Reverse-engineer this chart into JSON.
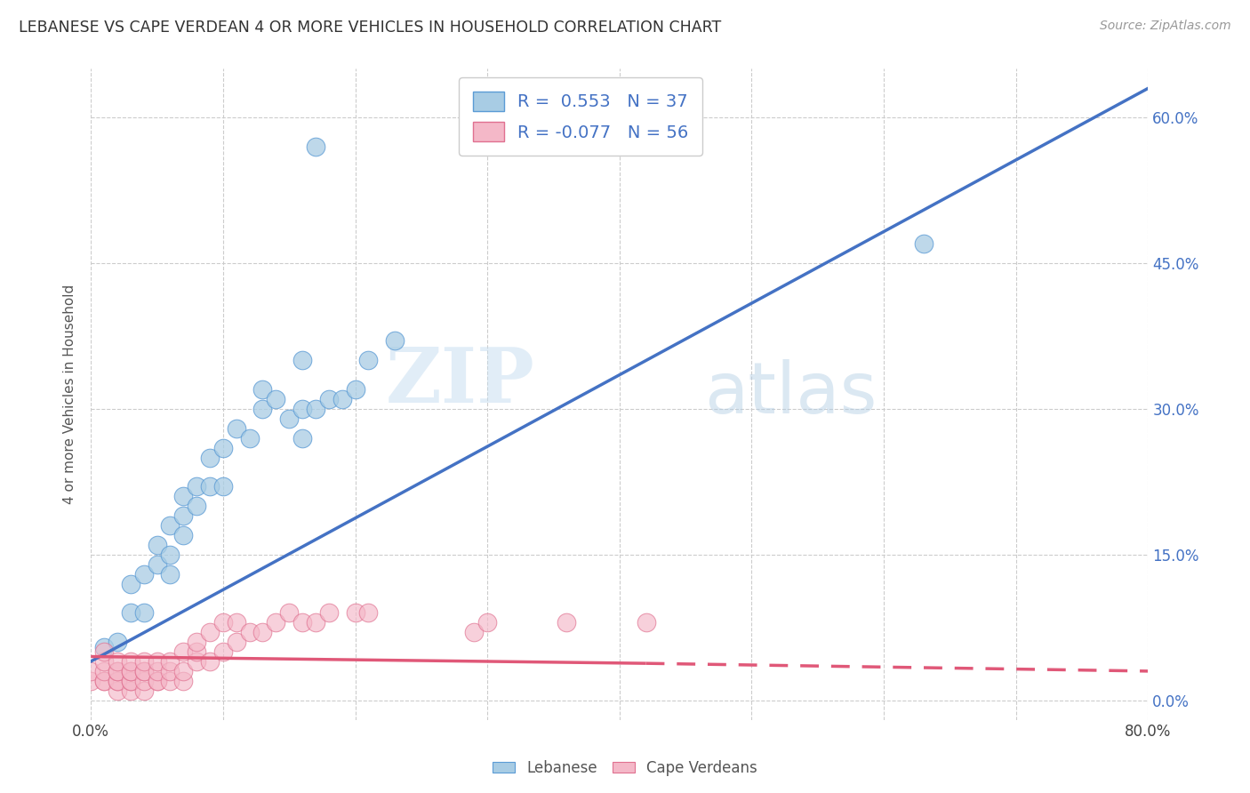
{
  "title": "LEBANESE VS CAPE VERDEAN 4 OR MORE VEHICLES IN HOUSEHOLD CORRELATION CHART",
  "source": "Source: ZipAtlas.com",
  "ylabel": "4 or more Vehicles in Household",
  "legend_label_1": "Lebanese",
  "legend_label_2": "Cape Verdeans",
  "r1": 0.553,
  "n1": 37,
  "r2": -0.077,
  "n2": 56,
  "xlim": [
    0.0,
    0.8
  ],
  "ylim": [
    -0.02,
    0.65
  ],
  "xtick_positions": [
    0.0,
    0.1,
    0.2,
    0.3,
    0.4,
    0.5,
    0.6,
    0.7,
    0.8
  ],
  "xtick_labels": [
    "0.0%",
    "",
    "",
    "",
    "",
    "",
    "",
    "",
    "80.0%"
  ],
  "ytick_positions": [
    0.0,
    0.15,
    0.3,
    0.45,
    0.6
  ],
  "ytick_right_labels": [
    "0.0%",
    "15.0%",
    "30.0%",
    "45.0%",
    "60.0%"
  ],
  "color_blue_fill": "#a8cce4",
  "color_blue_edge": "#5b9bd5",
  "color_blue_line": "#4472c4",
  "color_pink_fill": "#f4b8c8",
  "color_pink_edge": "#e07090",
  "color_pink_line": "#e05878",
  "watermark_zip": "ZIP",
  "watermark_atlas": "atlas",
  "background_color": "#ffffff",
  "blue_scatter_x": [
    0.01,
    0.02,
    0.03,
    0.03,
    0.04,
    0.04,
    0.05,
    0.05,
    0.06,
    0.06,
    0.06,
    0.07,
    0.07,
    0.07,
    0.08,
    0.08,
    0.09,
    0.09,
    0.1,
    0.1,
    0.11,
    0.12,
    0.13,
    0.13,
    0.14,
    0.15,
    0.16,
    0.16,
    0.17,
    0.18,
    0.19,
    0.2,
    0.21,
    0.23,
    0.63,
    0.16,
    0.17
  ],
  "blue_scatter_y": [
    0.055,
    0.06,
    0.09,
    0.12,
    0.09,
    0.13,
    0.14,
    0.16,
    0.13,
    0.15,
    0.18,
    0.17,
    0.19,
    0.21,
    0.2,
    0.22,
    0.22,
    0.25,
    0.22,
    0.26,
    0.28,
    0.27,
    0.3,
    0.32,
    0.31,
    0.29,
    0.3,
    0.27,
    0.3,
    0.31,
    0.31,
    0.32,
    0.35,
    0.37,
    0.47,
    0.35,
    0.57
  ],
  "pink_scatter_x": [
    0.0,
    0.0,
    0.01,
    0.01,
    0.01,
    0.01,
    0.01,
    0.02,
    0.02,
    0.02,
    0.02,
    0.02,
    0.02,
    0.03,
    0.03,
    0.03,
    0.03,
    0.03,
    0.03,
    0.04,
    0.04,
    0.04,
    0.04,
    0.04,
    0.05,
    0.05,
    0.05,
    0.05,
    0.06,
    0.06,
    0.06,
    0.07,
    0.07,
    0.07,
    0.08,
    0.08,
    0.08,
    0.09,
    0.09,
    0.1,
    0.1,
    0.11,
    0.11,
    0.12,
    0.13,
    0.14,
    0.15,
    0.16,
    0.17,
    0.18,
    0.2,
    0.21,
    0.29,
    0.3,
    0.36,
    0.42
  ],
  "pink_scatter_y": [
    0.02,
    0.03,
    0.02,
    0.02,
    0.03,
    0.04,
    0.05,
    0.01,
    0.02,
    0.02,
    0.03,
    0.03,
    0.04,
    0.01,
    0.02,
    0.02,
    0.03,
    0.03,
    0.04,
    0.01,
    0.02,
    0.03,
    0.03,
    0.04,
    0.02,
    0.02,
    0.03,
    0.04,
    0.02,
    0.03,
    0.04,
    0.02,
    0.03,
    0.05,
    0.04,
    0.05,
    0.06,
    0.04,
    0.07,
    0.05,
    0.08,
    0.06,
    0.08,
    0.07,
    0.07,
    0.08,
    0.09,
    0.08,
    0.08,
    0.09,
    0.09,
    0.09,
    0.07,
    0.08,
    0.08,
    0.08
  ],
  "blue_line_x0": 0.0,
  "blue_line_y0": 0.04,
  "blue_line_x1": 0.8,
  "blue_line_y1": 0.63,
  "pink_line_solid_x0": 0.0,
  "pink_line_solid_y0": 0.045,
  "pink_line_solid_x1": 0.42,
  "pink_line_solid_y1": 0.038,
  "pink_line_dash_x0": 0.42,
  "pink_line_dash_y0": 0.038,
  "pink_line_dash_x1": 0.8,
  "pink_line_dash_y1": 0.03
}
